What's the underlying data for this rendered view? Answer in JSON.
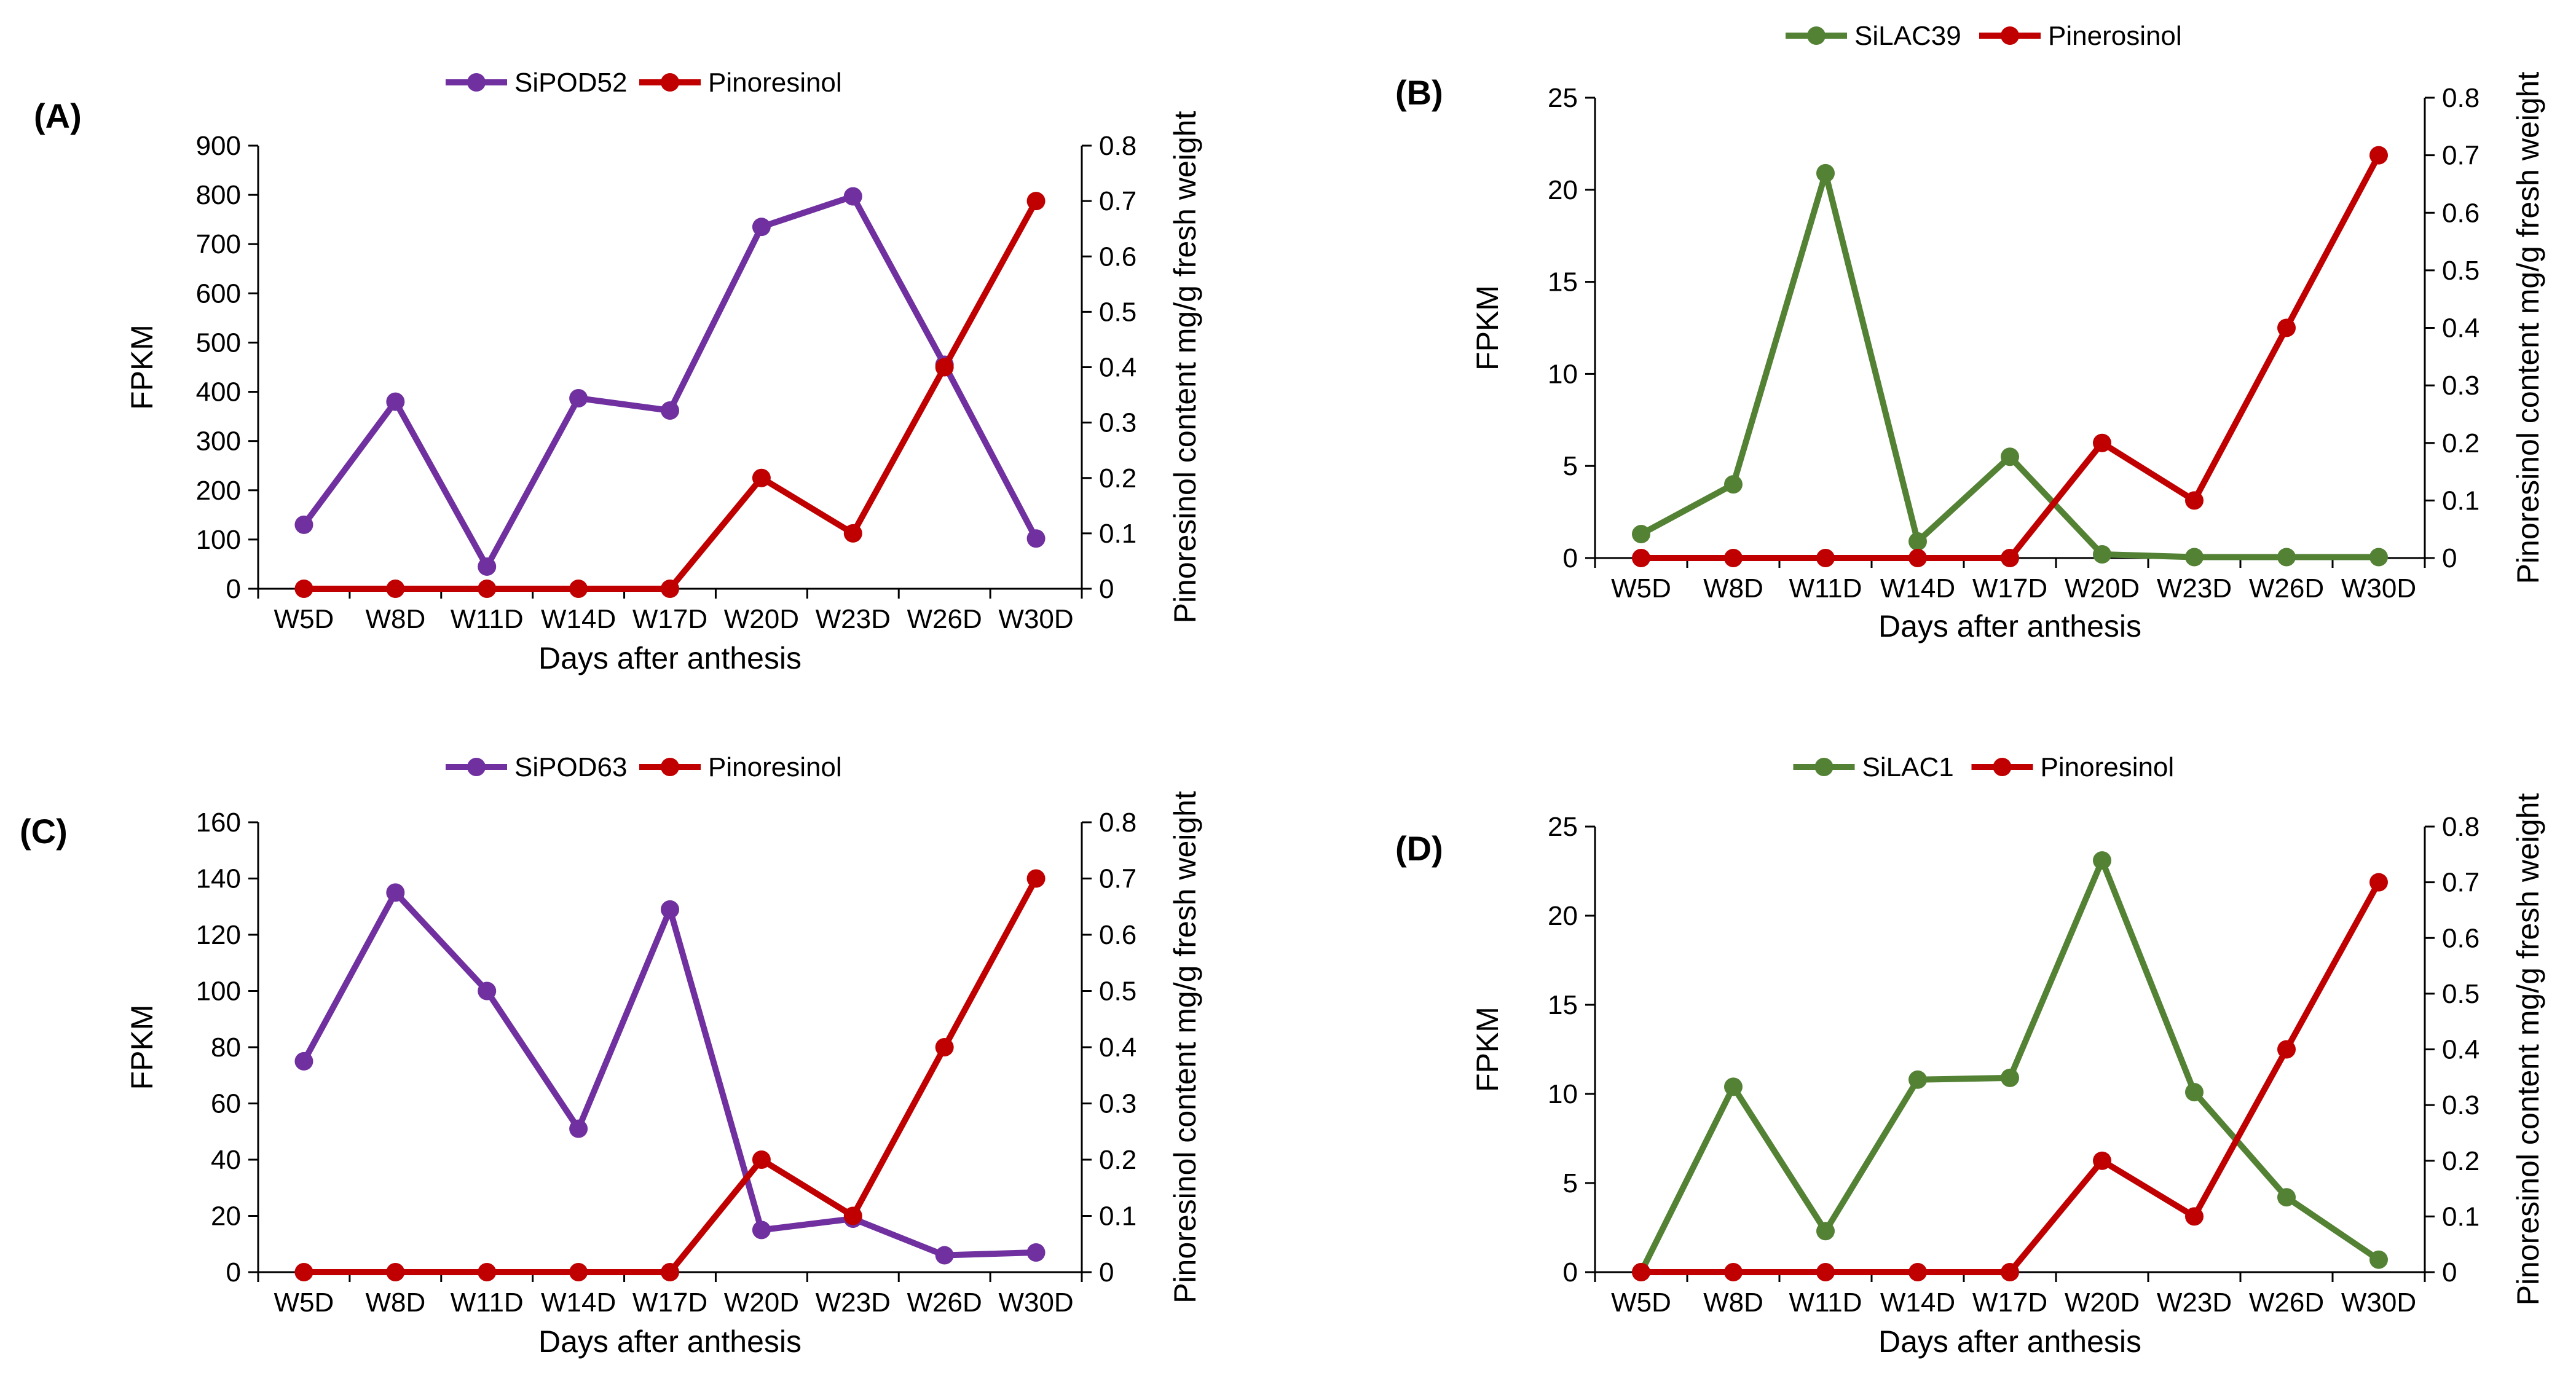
{
  "figure": {
    "xlabel": "Days after anthesis",
    "ylabel_left": "FPKM",
    "ylabel_right": "Pinoresinol content mg/g fresh weight"
  },
  "colors": {
    "purple": "#7030A0",
    "green": "#548235",
    "red": "#C00000",
    "axis": "#000000"
  },
  "chart_data": [
    {
      "panel": "(A)",
      "type": "line",
      "categories": [
        "W5D",
        "W8D",
        "W11D",
        "W14D",
        "W17D",
        "W20D",
        "W23D",
        "W26D",
        "W30D"
      ],
      "y_left": {
        "min": 0,
        "max": 900,
        "step": 100,
        "ticks": [
          "0",
          "100",
          "200",
          "300",
          "400",
          "500",
          "600",
          "700",
          "800",
          "900"
        ]
      },
      "y_right": {
        "min": 0,
        "max": 0.8,
        "step": 0.1,
        "ticks": [
          "0",
          "0.1",
          "0.2",
          "0.3",
          "0.4",
          "0.5",
          "0.6",
          "0.7",
          "0.8"
        ]
      },
      "series": [
        {
          "name": "SiPOD52",
          "axis": "left",
          "color": "#7030A0",
          "values": [
            130,
            380,
            45,
            387,
            362,
            735,
            797,
            455,
            102
          ]
        },
        {
          "name": "Pinoresinol",
          "axis": "right",
          "color": "#C00000",
          "values": [
            0,
            0,
            0,
            0,
            0,
            0.2,
            0.1,
            0.4,
            0.7
          ]
        }
      ]
    },
    {
      "panel": "(B)",
      "type": "line",
      "categories": [
        "W5D",
        "W8D",
        "W11D",
        "W14D",
        "W17D",
        "W20D",
        "W23D",
        "W26D",
        "W30D"
      ],
      "y_left": {
        "min": 0,
        "max": 25,
        "step": 5,
        "ticks": [
          "0",
          "5",
          "10",
          "15",
          "20",
          "25"
        ]
      },
      "y_right": {
        "min": 0,
        "max": 0.8,
        "step": 0.1,
        "ticks": [
          "0",
          "0.1",
          "0.2",
          "0.3",
          "0.4",
          "0.5",
          "0.6",
          "0.7",
          "0.8"
        ]
      },
      "series": [
        {
          "name": "SiLAC39",
          "axis": "left",
          "color": "#548235",
          "values": [
            1.3,
            4.0,
            20.9,
            0.9,
            5.5,
            0.2,
            0.05,
            0.05,
            0.05
          ]
        },
        {
          "name": "Pinerosinol",
          "axis": "right",
          "color": "#C00000",
          "values": [
            0,
            0,
            0,
            0,
            0,
            0.2,
            0.1,
            0.4,
            0.7
          ]
        }
      ]
    },
    {
      "panel": "(C)",
      "type": "line",
      "categories": [
        "W5D",
        "W8D",
        "W11D",
        "W14D",
        "W17D",
        "W20D",
        "W23D",
        "W26D",
        "W30D"
      ],
      "y_left": {
        "min": 0,
        "max": 160,
        "step": 20,
        "ticks": [
          "0",
          "20",
          "40",
          "60",
          "80",
          "100",
          "120",
          "140",
          "160"
        ]
      },
      "y_right": {
        "min": 0,
        "max": 0.8,
        "step": 0.1,
        "ticks": [
          "0",
          "0.1",
          "0.2",
          "0.3",
          "0.4",
          "0.5",
          "0.6",
          "0.7",
          "0.8"
        ]
      },
      "series": [
        {
          "name": "SiPOD63",
          "axis": "left",
          "color": "#7030A0",
          "values": [
            75,
            135,
            100,
            51,
            129,
            15,
            19,
            6,
            7
          ]
        },
        {
          "name": "Pinoresinol",
          "axis": "right",
          "color": "#C00000",
          "values": [
            0,
            0,
            0,
            0,
            0,
            0.2,
            0.1,
            0.4,
            0.7
          ]
        }
      ]
    },
    {
      "panel": "(D)",
      "type": "line",
      "categories": [
        "W5D",
        "W8D",
        "W11D",
        "W14D",
        "W17D",
        "W20D",
        "W23D",
        "W26D",
        "W30D"
      ],
      "y_left": {
        "min": 0,
        "max": 25,
        "step": 5,
        "ticks": [
          "0",
          "5",
          "10",
          "15",
          "20",
          "25"
        ]
      },
      "y_right": {
        "min": 0,
        "max": 0.8,
        "step": 0.1,
        "ticks": [
          "0",
          "0.1",
          "0.2",
          "0.3",
          "0.4",
          "0.5",
          "0.6",
          "0.7",
          "0.8"
        ]
      },
      "series": [
        {
          "name": "SiLAC1",
          "axis": "left",
          "color": "#548235",
          "values": [
            0,
            10.4,
            2.3,
            10.8,
            10.9,
            23.1,
            10.1,
            4.2,
            0.7
          ]
        },
        {
          "name": "Pinoresinol",
          "axis": "right",
          "color": "#C00000",
          "values": [
            0,
            0,
            0,
            0,
            0,
            0.2,
            0.1,
            0.4,
            0.7
          ]
        }
      ]
    }
  ]
}
